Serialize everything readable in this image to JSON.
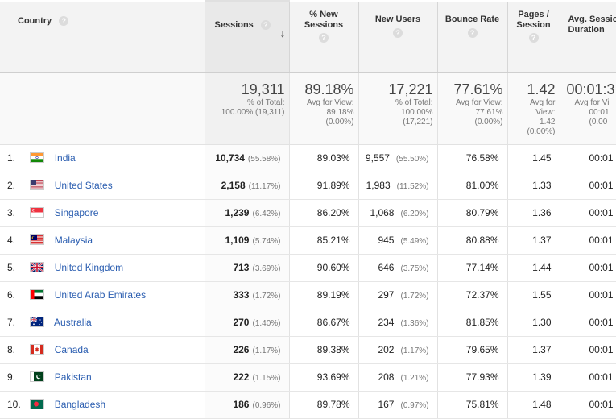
{
  "header": {
    "country": "Country",
    "sessions": "Sessions",
    "new_sessions": "% New Sessions",
    "new_users": "New Users",
    "bounce_rate": "Bounce Rate",
    "pages_session": "Pages / Session",
    "avg_duration": "Avg. Session Duration",
    "help_glyph": "?"
  },
  "totals": {
    "sessions": {
      "value": "19,311",
      "sub1": "% of Total:",
      "sub2": "100.00% (19,311)"
    },
    "new_sessions": {
      "value": "89.18%",
      "sub1": "Avg for View:",
      "sub2": "89.18%",
      "sub3": "(0.00%)"
    },
    "new_users": {
      "value": "17,221",
      "sub1": "% of Total:",
      "sub2": "100.00%",
      "sub3": "(17,221)"
    },
    "bounce_rate": {
      "value": "77.61%",
      "sub1": "Avg for View:",
      "sub2": "77.61%",
      "sub3": "(0.00%)"
    },
    "pages_session": {
      "value": "1.42",
      "sub1": "Avg for",
      "sub2": "View:",
      "sub3": "1.42",
      "sub4": "(0.00%)"
    },
    "avg_duration": {
      "value": "00:01:3",
      "sub1": "Avg for Vi",
      "sub2": "00:01",
      "sub3": "(0.00"
    }
  },
  "rows": [
    {
      "rank": "1.",
      "country": "India",
      "flag": "in",
      "sessions": "10,734",
      "sessions_pct": "(55.58%)",
      "new_sessions": "89.03%",
      "new_users": "9,557",
      "new_users_pct": "(55.50%)",
      "bounce": "76.58%",
      "pages": "1.45",
      "duration": "00:01"
    },
    {
      "rank": "2.",
      "country": "United States",
      "flag": "us",
      "sessions": "2,158",
      "sessions_pct": "(11.17%)",
      "new_sessions": "91.89%",
      "new_users": "1,983",
      "new_users_pct": "(11.52%)",
      "bounce": "81.00%",
      "pages": "1.33",
      "duration": "00:01"
    },
    {
      "rank": "3.",
      "country": "Singapore",
      "flag": "sg",
      "sessions": "1,239",
      "sessions_pct": "(6.42%)",
      "new_sessions": "86.20%",
      "new_users": "1,068",
      "new_users_pct": "(6.20%)",
      "bounce": "80.79%",
      "pages": "1.36",
      "duration": "00:01"
    },
    {
      "rank": "4.",
      "country": "Malaysia",
      "flag": "my",
      "sessions": "1,109",
      "sessions_pct": "(5.74%)",
      "new_sessions": "85.21%",
      "new_users": "945",
      "new_users_pct": "(5.49%)",
      "bounce": "80.88%",
      "pages": "1.37",
      "duration": "00:01"
    },
    {
      "rank": "5.",
      "country": "United Kingdom",
      "flag": "gb",
      "sessions": "713",
      "sessions_pct": "(3.69%)",
      "new_sessions": "90.60%",
      "new_users": "646",
      "new_users_pct": "(3.75%)",
      "bounce": "77.14%",
      "pages": "1.44",
      "duration": "00:01"
    },
    {
      "rank": "6.",
      "country": "United Arab Emirates",
      "flag": "ae",
      "sessions": "333",
      "sessions_pct": "(1.72%)",
      "new_sessions": "89.19%",
      "new_users": "297",
      "new_users_pct": "(1.72%)",
      "bounce": "72.37%",
      "pages": "1.55",
      "duration": "00:01"
    },
    {
      "rank": "7.",
      "country": "Australia",
      "flag": "au",
      "sessions": "270",
      "sessions_pct": "(1.40%)",
      "new_sessions": "86.67%",
      "new_users": "234",
      "new_users_pct": "(1.36%)",
      "bounce": "81.85%",
      "pages": "1.30",
      "duration": "00:01"
    },
    {
      "rank": "8.",
      "country": "Canada",
      "flag": "ca",
      "sessions": "226",
      "sessions_pct": "(1.17%)",
      "new_sessions": "89.38%",
      "new_users": "202",
      "new_users_pct": "(1.17%)",
      "bounce": "79.65%",
      "pages": "1.37",
      "duration": "00:01"
    },
    {
      "rank": "9.",
      "country": "Pakistan",
      "flag": "pk",
      "sessions": "222",
      "sessions_pct": "(1.15%)",
      "new_sessions": "93.69%",
      "new_users": "208",
      "new_users_pct": "(1.21%)",
      "bounce": "77.93%",
      "pages": "1.39",
      "duration": "00:01"
    },
    {
      "rank": "10.",
      "country": "Bangladesh",
      "flag": "bd",
      "sessions": "186",
      "sessions_pct": "(0.96%)",
      "new_sessions": "89.78%",
      "new_users": "167",
      "new_users_pct": "(0.97%)",
      "bounce": "75.81%",
      "pages": "1.48",
      "duration": "00:01"
    }
  ],
  "colors": {
    "link": "#2a5db0",
    "header_bg": "#f3f3f3",
    "muted": "#777777"
  }
}
